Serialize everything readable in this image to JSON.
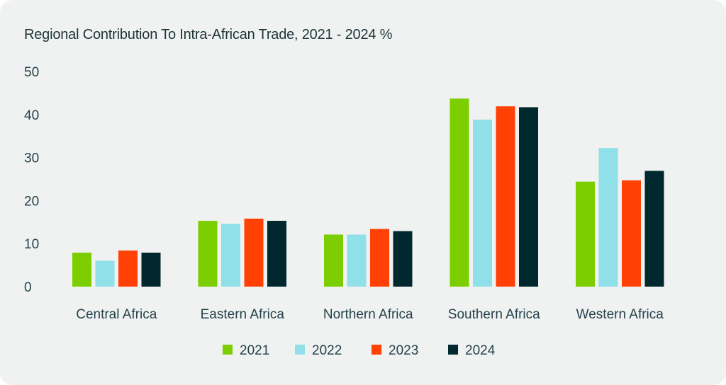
{
  "chart_data": {
    "type": "bar",
    "title": "Regional Contribution To Intra-African Trade, 2021 - 2024 %",
    "xlabel": "",
    "ylabel": "",
    "ylim": [
      0,
      50
    ],
    "yticks": [
      0,
      10,
      20,
      30,
      40,
      50
    ],
    "grid": false,
    "legend_position": "bottom",
    "categories": [
      "Central Africa",
      "Eastern Africa",
      "Northern Africa",
      "Southern Africa",
      "Western Africa"
    ],
    "series": [
      {
        "name": "2021",
        "color": "#7dce00",
        "values": [
          7.9,
          15.3,
          12.1,
          43.7,
          24.4
        ]
      },
      {
        "name": "2022",
        "color": "#90e0ea",
        "values": [
          6.0,
          14.6,
          12.1,
          38.8,
          32.2
        ]
      },
      {
        "name": "2023",
        "color": "#ff4106",
        "values": [
          8.4,
          15.8,
          13.4,
          41.9,
          24.7
        ]
      },
      {
        "name": "2024",
        "color": "#00282e",
        "values": [
          7.9,
          15.3,
          12.9,
          41.7,
          26.9
        ]
      }
    ]
  }
}
